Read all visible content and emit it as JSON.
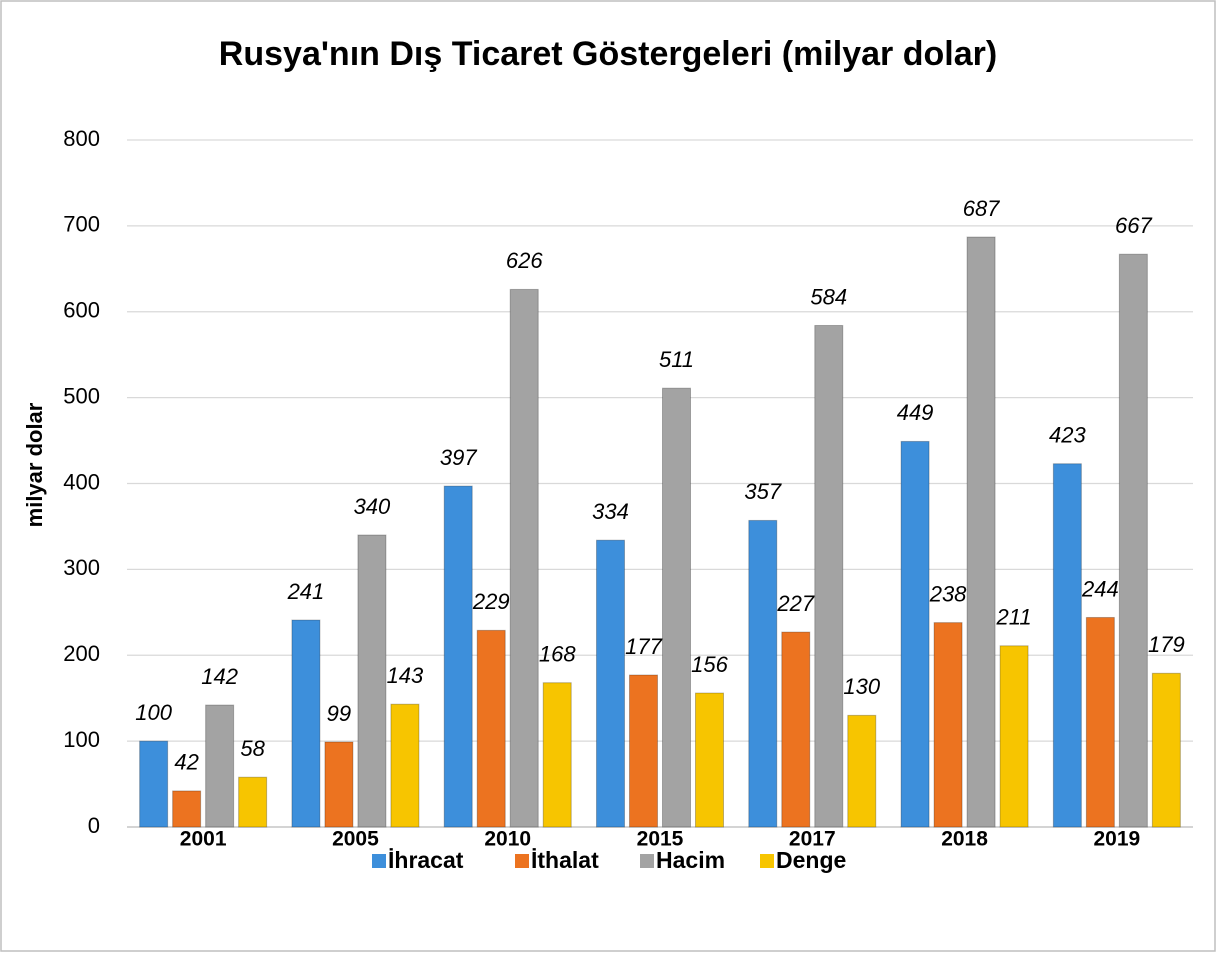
{
  "chart_data": {
    "type": "bar",
    "title": "Rusya'nın Dış Ticaret Göstergeleri (milyar dolar)",
    "y_label": "milyar dolar",
    "categories": [
      "2001",
      "2005",
      "2010",
      "2015",
      "2017",
      "2018",
      "2019"
    ],
    "series": [
      {
        "name": "İhracat",
        "color": "#3d8fdb",
        "values": [
          100,
          241,
          397,
          334,
          357,
          449,
          423
        ]
      },
      {
        "name": "İthalat",
        "color": "#ec7320",
        "values": [
          42,
          99,
          229,
          177,
          227,
          238,
          244
        ]
      },
      {
        "name": "Hacim",
        "color": "#a3a3a3",
        "values": [
          142,
          340,
          626,
          511,
          584,
          687,
          667
        ]
      },
      {
        "name": "Denge",
        "color": "#f7c500",
        "values": [
          58,
          143,
          168,
          156,
          130,
          211,
          179
        ]
      }
    ],
    "ylim": [
      0,
      800
    ],
    "yticks": [
      0,
      100,
      200,
      300,
      400,
      500,
      600,
      700,
      800
    ],
    "grid": true,
    "legend": "bottom"
  }
}
